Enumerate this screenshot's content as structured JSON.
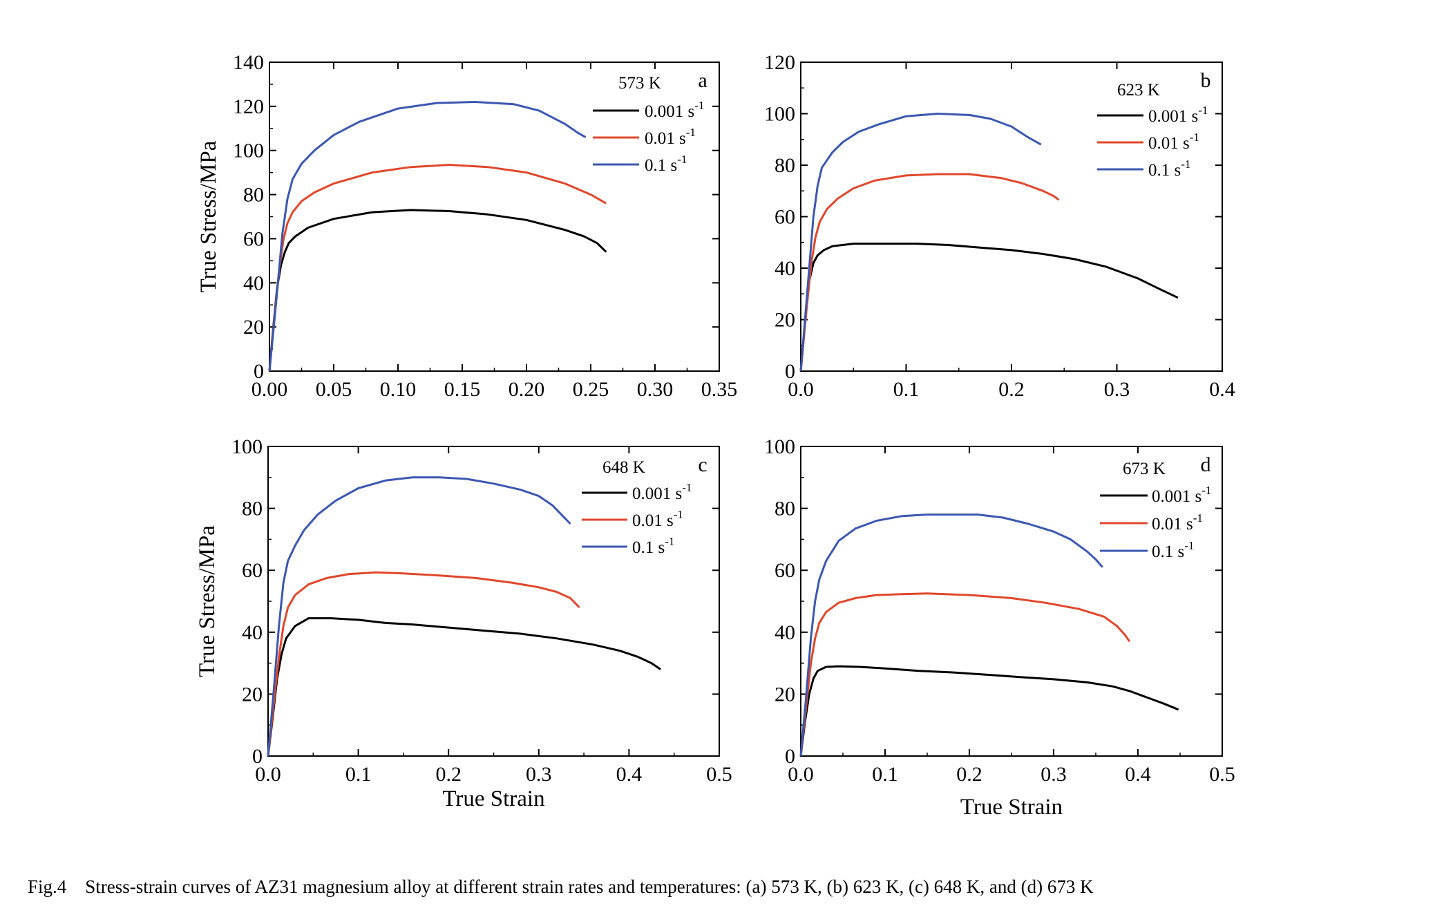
{
  "caption": {
    "fig_label": "Fig.4",
    "text": "Stress-strain curves of AZ31 magnesium alloy at different strain rates and temperatures: (a) 573 K, (b) 623 K, (c) 648 K, and (d) 673 K"
  },
  "colors": {
    "black": "#000000",
    "red": "#e0472b",
    "blue": "#3b57b0"
  },
  "chart_data": [
    {
      "type": "line",
      "panel_label": "a",
      "temperature_label": "573 K",
      "xlabel": "",
      "ylabel": "True Stress/MPa",
      "xlim": [
        0,
        0.35
      ],
      "ylim": [
        0,
        140
      ],
      "x_ticks": [
        "0.00",
        "0.05",
        "0.10",
        "0.15",
        "0.20",
        "0.25",
        "0.30",
        "0.35"
      ],
      "y_ticks": [
        "0",
        "20",
        "40",
        "60",
        "80",
        "100",
        "120",
        "140"
      ],
      "legend_position": "top-right",
      "series": [
        {
          "name": "0.001 s-1",
          "color": "#000000",
          "x": [
            0,
            0.003,
            0.006,
            0.009,
            0.012,
            0.015,
            0.02,
            0.03,
            0.05,
            0.08,
            0.11,
            0.14,
            0.17,
            0.2,
            0.23,
            0.245,
            0.255,
            0.262
          ],
          "y": [
            0,
            20,
            38,
            48,
            54,
            58,
            61,
            65,
            69,
            72,
            73,
            72.5,
            71,
            68.5,
            64,
            61,
            58,
            54
          ]
        },
        {
          "name": "0.01 s-1",
          "color": "#e0472b",
          "x": [
            0,
            0.004,
            0.008,
            0.011,
            0.014,
            0.018,
            0.025,
            0.035,
            0.05,
            0.08,
            0.11,
            0.14,
            0.17,
            0.2,
            0.23,
            0.25,
            0.262
          ],
          "y": [
            0,
            25,
            48,
            60,
            67,
            72,
            77,
            81,
            85,
            90,
            92.5,
            93.5,
            92.5,
            90,
            85,
            80,
            76
          ]
        },
        {
          "name": "0.1 s-1",
          "color": "#3b57b0",
          "x": [
            0,
            0.005,
            0.01,
            0.014,
            0.018,
            0.025,
            0.035,
            0.05,
            0.07,
            0.1,
            0.13,
            0.16,
            0.19,
            0.21,
            0.23,
            0.24,
            0.246
          ],
          "y": [
            0,
            30,
            62,
            78,
            87,
            94,
            100,
            107,
            113,
            119,
            121.5,
            122,
            121,
            118,
            112,
            108,
            106
          ]
        }
      ]
    },
    {
      "type": "line",
      "panel_label": "b",
      "temperature_label": "623 K",
      "xlabel": "",
      "ylabel": "",
      "xlim": [
        0,
        0.4
      ],
      "ylim": [
        0,
        120
      ],
      "x_ticks": [
        "0.0",
        "0.1",
        "0.2",
        "0.3",
        "0.4"
      ],
      "y_ticks": [
        "0",
        "20",
        "40",
        "60",
        "80",
        "100",
        "120"
      ],
      "legend_position": "top-right",
      "series": [
        {
          "name": "0.001 s-1",
          "color": "#000000",
          "x": [
            0,
            0.004,
            0.008,
            0.012,
            0.016,
            0.022,
            0.03,
            0.05,
            0.08,
            0.11,
            0.14,
            0.17,
            0.2,
            0.23,
            0.26,
            0.29,
            0.32,
            0.34,
            0.358
          ],
          "y": [
            0,
            18,
            35,
            42,
            45,
            47,
            48.5,
            49.5,
            49.5,
            49.5,
            49,
            48,
            47,
            45.5,
            43.5,
            40.5,
            36,
            32,
            28.5
          ]
        },
        {
          "name": "0.01 s-1",
          "color": "#e0472b",
          "x": [
            0,
            0.005,
            0.01,
            0.014,
            0.018,
            0.025,
            0.035,
            0.05,
            0.07,
            0.1,
            0.13,
            0.16,
            0.19,
            0.21,
            0.23,
            0.24,
            0.245
          ],
          "y": [
            0,
            22,
            42,
            52,
            58,
            63,
            67,
            71,
            74,
            76,
            76.5,
            76.5,
            75,
            73,
            70,
            68,
            66.5
          ]
        },
        {
          "name": "0.1 s-1",
          "color": "#3b57b0",
          "x": [
            0,
            0.006,
            0.012,
            0.016,
            0.02,
            0.03,
            0.04,
            0.055,
            0.075,
            0.1,
            0.13,
            0.16,
            0.18,
            0.2,
            0.215,
            0.228
          ],
          "y": [
            0,
            30,
            60,
            72,
            79,
            85,
            89,
            93,
            96,
            99,
            100,
            99.5,
            98,
            95,
            91,
            88
          ]
        }
      ]
    },
    {
      "type": "line",
      "panel_label": "c",
      "temperature_label": "648 K",
      "xlabel": "True Strain",
      "ylabel": "True Stress/MPa",
      "xlim": [
        0,
        0.5
      ],
      "ylim": [
        0,
        100
      ],
      "x_ticks": [
        "0.0",
        "0.1",
        "0.2",
        "0.3",
        "0.4",
        "0.5"
      ],
      "y_ticks": [
        "0",
        "20",
        "40",
        "60",
        "80",
        "100"
      ],
      "legend_position": "top-right",
      "series": [
        {
          "name": "0.001 s-1",
          "color": "#000000",
          "x": [
            0,
            0.005,
            0.01,
            0.015,
            0.02,
            0.03,
            0.045,
            0.07,
            0.1,
            0.13,
            0.16,
            0.2,
            0.24,
            0.28,
            0.32,
            0.36,
            0.39,
            0.41,
            0.425,
            0.435
          ],
          "y": [
            0,
            12,
            25,
            33,
            38,
            42,
            44.5,
            44.5,
            44,
            43,
            42.5,
            41.5,
            40.5,
            39.5,
            38,
            36,
            34,
            32,
            30,
            28
          ]
        },
        {
          "name": "0.01 s-1",
          "color": "#e0472b",
          "x": [
            0,
            0.006,
            0.012,
            0.017,
            0.022,
            0.03,
            0.045,
            0.065,
            0.09,
            0.12,
            0.15,
            0.19,
            0.23,
            0.27,
            0.3,
            0.32,
            0.335,
            0.345
          ],
          "y": [
            0,
            16,
            32,
            42,
            48,
            52,
            55.5,
            57.5,
            58.8,
            59.3,
            59,
            58.3,
            57.5,
            56,
            54.5,
            53,
            51,
            48
          ]
        },
        {
          "name": "0.1 s-1",
          "color": "#3b57b0",
          "x": [
            0,
            0.006,
            0.012,
            0.017,
            0.022,
            0.03,
            0.04,
            0.055,
            0.075,
            0.1,
            0.13,
            0.16,
            0.19,
            0.22,
            0.25,
            0.28,
            0.3,
            0.315,
            0.325,
            0.335
          ],
          "y": [
            0,
            20,
            42,
            56,
            63,
            68,
            73,
            78,
            82.5,
            86.5,
            89,
            90,
            90,
            89.5,
            88,
            86,
            84,
            81,
            78,
            75
          ]
        }
      ]
    },
    {
      "type": "line",
      "panel_label": "d",
      "temperature_label": "673 K",
      "xlabel": "True Strain",
      "ylabel": "",
      "xlim": [
        0,
        0.5
      ],
      "ylim": [
        0,
        100
      ],
      "x_ticks": [
        "0.0",
        "0.1",
        "0.2",
        "0.3",
        "0.4",
        "0.5"
      ],
      "y_ticks": [
        "0",
        "20",
        "40",
        "60",
        "80",
        "100"
      ],
      "legend_position": "top-right",
      "series": [
        {
          "name": "0.001 s-1",
          "color": "#000000",
          "x": [
            0,
            0.005,
            0.01,
            0.015,
            0.02,
            0.03,
            0.045,
            0.07,
            0.1,
            0.14,
            0.18,
            0.22,
            0.26,
            0.3,
            0.34,
            0.37,
            0.39,
            0.41,
            0.43,
            0.448
          ],
          "y": [
            0,
            11,
            20,
            25,
            27.5,
            28.8,
            29,
            28.8,
            28.3,
            27.5,
            27,
            26.3,
            25.5,
            24.8,
            23.8,
            22.5,
            21,
            19,
            17,
            15
          ]
        },
        {
          "name": "0.01 s-1",
          "color": "#e0472b",
          "x": [
            0,
            0.006,
            0.012,
            0.017,
            0.022,
            0.03,
            0.045,
            0.065,
            0.09,
            0.12,
            0.15,
            0.2,
            0.25,
            0.29,
            0.33,
            0.36,
            0.375,
            0.385,
            0.39
          ],
          "y": [
            0,
            15,
            30,
            38,
            43,
            46.5,
            49.5,
            51,
            52,
            52.3,
            52.5,
            52,
            51,
            49.5,
            47.5,
            45,
            42,
            39,
            37
          ]
        },
        {
          "name": "0.1 s-1",
          "color": "#3b57b0",
          "x": [
            0,
            0.006,
            0.012,
            0.017,
            0.022,
            0.03,
            0.045,
            0.065,
            0.09,
            0.12,
            0.15,
            0.18,
            0.21,
            0.24,
            0.27,
            0.3,
            0.32,
            0.34,
            0.35,
            0.358
          ],
          "y": [
            0,
            18,
            38,
            50,
            57,
            63,
            69.5,
            73.5,
            76,
            77.5,
            78,
            78,
            78,
            77,
            75,
            72.5,
            70,
            66,
            63.5,
            61
          ]
        }
      ]
    }
  ]
}
